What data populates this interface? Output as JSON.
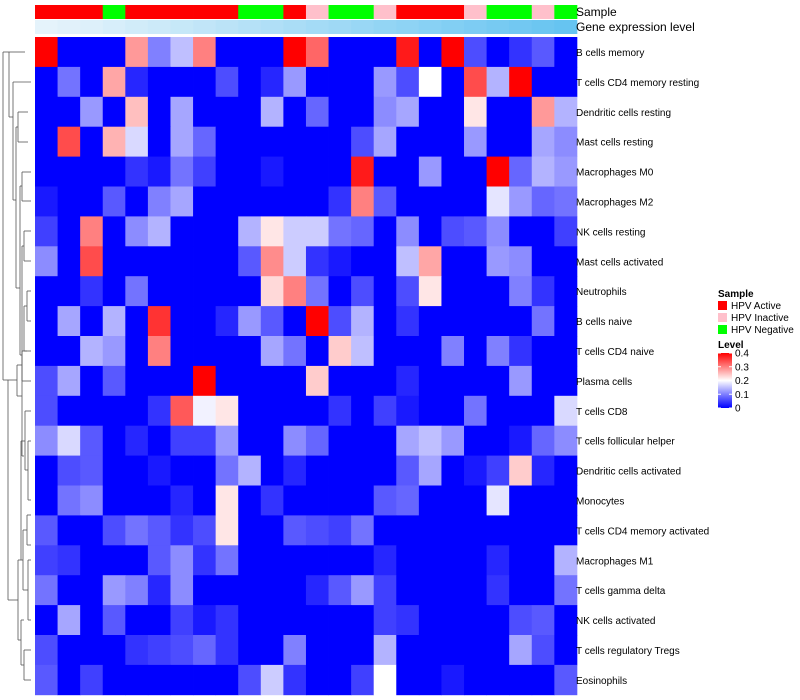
{
  "chart_data": {
    "type": "heatmap",
    "annotation_tracks": [
      {
        "name": "Sample",
        "label": "Sample"
      },
      {
        "name": "Gene expression level",
        "label": "Gene expression level"
      }
    ],
    "sample_groups": [
      "HPV Active",
      "HPV Active",
      "HPV Active",
      "HPV Negative",
      "HPV Active",
      "HPV Active",
      "HPV Active",
      "HPV Active",
      "HPV Active",
      "HPV Negative",
      "HPV Negative",
      "HPV Active",
      "HPV Inactive",
      "HPV Negative",
      "HPV Negative",
      "HPV Inactive",
      "HPV Active",
      "HPV Active",
      "HPV Active",
      "HPV Inactive",
      "HPV Negative",
      "HPV Negative",
      "HPV Inactive",
      "HPV Negative"
    ],
    "expression_level": [
      0.02,
      0.05,
      0.08,
      0.12,
      0.16,
      0.2,
      0.24,
      0.28,
      0.32,
      0.36,
      0.4,
      0.44,
      0.48,
      0.52,
      0.56,
      0.6,
      0.64,
      0.68,
      0.72,
      0.76,
      0.8,
      0.84,
      0.88,
      0.92
    ],
    "rows": [
      "B cells memory",
      "T cells CD4 memory resting",
      "Dendritic cells resting",
      "Mast cells resting",
      "Macrophages M0",
      "Macrophages M2",
      "NK cells resting",
      "Mast cells activated",
      "Neutrophils",
      "B cells naive",
      "T cells CD4 naive",
      "Plasma cells",
      "T cells CD8",
      "T cells follicular helper",
      "Dendritic cells activated",
      "Monocytes",
      "T cells CD4 memory activated",
      "Macrophages M1",
      "T cells gamma delta",
      "NK cells activated",
      "T cells regulatory  Tregs",
      "Eosinophils"
    ],
    "values": [
      [
        0.4,
        0.0,
        0.0,
        0.0,
        0.28,
        0.1,
        0.15,
        0.3,
        0.0,
        0.0,
        0.0,
        0.4,
        0.32,
        0.0,
        0.0,
        0.0,
        0.38,
        0.0,
        0.4,
        0.06,
        0.0,
        0.04,
        0.07,
        0.0
      ],
      [
        0.0,
        0.09,
        0.0,
        0.27,
        0.03,
        0.0,
        0.0,
        0.0,
        0.06,
        0.0,
        0.03,
        0.12,
        0.0,
        0.0,
        0.0,
        0.12,
        0.06,
        0.2,
        0.0,
        0.34,
        0.14,
        0.4,
        0.0,
        0.0
      ],
      [
        0.0,
        0.0,
        0.12,
        0.0,
        0.25,
        0.0,
        0.13,
        0.0,
        0.0,
        0.0,
        0.14,
        0.0,
        0.08,
        0.0,
        0.0,
        0.11,
        0.13,
        0.0,
        0.0,
        0.22,
        0.0,
        0.0,
        0.28,
        0.14
      ],
      [
        0.0,
        0.34,
        0.0,
        0.26,
        0.17,
        0.0,
        0.13,
        0.08,
        0.0,
        0.0,
        0.0,
        0.0,
        0.0,
        0.0,
        0.06,
        0.13,
        0.0,
        0.0,
        0.0,
        0.12,
        0.0,
        0.0,
        0.13,
        0.11
      ],
      [
        0.0,
        0.0,
        0.0,
        0.0,
        0.04,
        0.02,
        0.09,
        0.05,
        0.0,
        0.0,
        0.02,
        0.0,
        0.0,
        0.0,
        0.38,
        0.0,
        0.0,
        0.12,
        0.0,
        0.0,
        0.4,
        0.08,
        0.14,
        0.12
      ],
      [
        0.02,
        0.0,
        0.0,
        0.07,
        0.0,
        0.1,
        0.13,
        0.0,
        0.0,
        0.0,
        0.0,
        0.0,
        0.0,
        0.04,
        0.3,
        0.07,
        0.0,
        0.0,
        0.0,
        0.0,
        0.18,
        0.12,
        0.08,
        0.09
      ],
      [
        0.05,
        0.0,
        0.3,
        0.0,
        0.11,
        0.14,
        0.0,
        0.0,
        0.0,
        0.14,
        0.22,
        0.16,
        0.16,
        0.09,
        0.08,
        0.0,
        0.11,
        0.0,
        0.06,
        0.07,
        0.11,
        0.0,
        0.0,
        0.05
      ],
      [
        0.11,
        0.0,
        0.34,
        0.0,
        0.0,
        0.0,
        0.0,
        0.0,
        0.0,
        0.07,
        0.29,
        0.16,
        0.04,
        0.02,
        0.0,
        0.0,
        0.15,
        0.27,
        0.0,
        0.0,
        0.12,
        0.11,
        0.0,
        0.0
      ],
      [
        0.0,
        0.0,
        0.04,
        0.0,
        0.09,
        0.0,
        0.0,
        0.0,
        0.0,
        0.0,
        0.23,
        0.3,
        0.09,
        0.0,
        0.06,
        0.0,
        0.06,
        0.22,
        0.0,
        0.0,
        0.0,
        0.1,
        0.04,
        0.0
      ],
      [
        0.0,
        0.13,
        0.0,
        0.14,
        0.0,
        0.36,
        0.0,
        0.0,
        0.03,
        0.12,
        0.07,
        0.0,
        0.4,
        0.06,
        0.14,
        0.0,
        0.04,
        0.0,
        0.0,
        0.0,
        0.0,
        0.0,
        0.09,
        0.0
      ],
      [
        0.0,
        0.0,
        0.14,
        0.12,
        0.0,
        0.3,
        0.0,
        0.0,
        0.0,
        0.0,
        0.13,
        0.09,
        0.0,
        0.24,
        0.15,
        0.0,
        0.0,
        0.0,
        0.1,
        0.0,
        0.1,
        0.04,
        0.0,
        0.0
      ],
      [
        0.06,
        0.13,
        0.0,
        0.07,
        0.0,
        0.0,
        0.0,
        0.4,
        0.0,
        0.0,
        0.0,
        0.0,
        0.24,
        0.0,
        0.0,
        0.0,
        0.03,
        0.0,
        0.0,
        0.0,
        0.0,
        0.12,
        0.0,
        0.0
      ],
      [
        0.06,
        0.0,
        0.0,
        0.0,
        0.0,
        0.04,
        0.33,
        0.19,
        0.22,
        0.0,
        0.0,
        0.0,
        0.0,
        0.04,
        0.0,
        0.05,
        0.02,
        0.0,
        0.0,
        0.09,
        0.0,
        0.0,
        0.0,
        0.17
      ],
      [
        0.11,
        0.17,
        0.07,
        0.0,
        0.03,
        0.0,
        0.05,
        0.05,
        0.12,
        0.0,
        0.0,
        0.11,
        0.08,
        0.0,
        0.0,
        0.0,
        0.13,
        0.15,
        0.12,
        0.0,
        0.0,
        0.02,
        0.08,
        0.11
      ],
      [
        0.0,
        0.06,
        0.07,
        0.0,
        0.0,
        0.02,
        0.0,
        0.0,
        0.09,
        0.14,
        0.0,
        0.03,
        0.0,
        0.0,
        0.0,
        0.0,
        0.07,
        0.13,
        0.0,
        0.02,
        0.05,
        0.24,
        0.03,
        0.0
      ],
      [
        0.0,
        0.09,
        0.11,
        0.0,
        0.0,
        0.0,
        0.03,
        0.0,
        0.22,
        0.0,
        0.04,
        0.0,
        0.0,
        0.0,
        0.0,
        0.07,
        0.08,
        0.0,
        0.0,
        0.0,
        0.18,
        0.0,
        0.0,
        0.0
      ],
      [
        0.07,
        0.0,
        0.0,
        0.06,
        0.09,
        0.07,
        0.04,
        0.06,
        0.22,
        0.0,
        0.0,
        0.07,
        0.06,
        0.05,
        0.09,
        0.0,
        0.0,
        0.0,
        0.0,
        0.0,
        0.0,
        0.0,
        0.0,
        0.0
      ],
      [
        0.05,
        0.04,
        0.0,
        0.0,
        0.0,
        0.07,
        0.11,
        0.04,
        0.09,
        0.0,
        0.0,
        0.0,
        0.0,
        0.0,
        0.0,
        0.03,
        0.0,
        0.0,
        0.0,
        0.0,
        0.03,
        0.0,
        0.0,
        0.14
      ],
      [
        0.09,
        0.0,
        0.0,
        0.12,
        0.1,
        0.03,
        0.11,
        0.0,
        0.0,
        0.0,
        0.0,
        0.0,
        0.03,
        0.07,
        0.12,
        0.05,
        0.0,
        0.0,
        0.0,
        0.0,
        0.04,
        0.0,
        0.0,
        0.09
      ],
      [
        0.0,
        0.13,
        0.0,
        0.07,
        0.0,
        0.0,
        0.05,
        0.02,
        0.04,
        0.0,
        0.0,
        0.0,
        0.0,
        0.0,
        0.0,
        0.05,
        0.04,
        0.0,
        0.0,
        0.0,
        0.0,
        0.06,
        0.07,
        0.0
      ],
      [
        0.06,
        0.0,
        0.0,
        0.0,
        0.04,
        0.05,
        0.06,
        0.08,
        0.04,
        0.0,
        0.0,
        0.1,
        0.0,
        0.0,
        0.0,
        0.14,
        0.0,
        0.0,
        0.0,
        0.0,
        0.0,
        0.13,
        0.06,
        0.0
      ],
      [
        0.07,
        0.0,
        0.05,
        0.0,
        0.0,
        0.0,
        0.0,
        0.0,
        0.0,
        0.06,
        0.16,
        0.04,
        0.0,
        0.0,
        0.05,
        0.2,
        0.0,
        0.0,
        0.02,
        0.0,
        0.0,
        0.0,
        0.0,
        0.07
      ]
    ],
    "color_scale": {
      "min": 0,
      "mid": 0.2,
      "max": 0.4,
      "low": "#0000ff",
      "middle": "#ffffff",
      "high": "#ff0000"
    },
    "legend": {
      "sample_title": "Sample",
      "sample_entries": [
        {
          "label": "HPV Active",
          "color": "#ff0000"
        },
        {
          "label": "HPV Inactive",
          "color": "#ffc0cb"
        },
        {
          "label": "HPV Negative",
          "color": "#00ff00"
        }
      ],
      "level_title": "Level",
      "level_ticks": [
        0.4,
        0.3,
        0.2,
        0.1,
        0
      ],
      "level_tick_labels": [
        "0.4",
        "0.3",
        "0.2",
        "0.1",
        "0"
      ]
    },
    "expression_colors": {
      "low": "#e8f4fb",
      "high": "#5bc0f0"
    }
  }
}
